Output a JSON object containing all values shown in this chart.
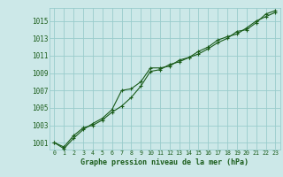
{
  "title": "Graphe pression niveau de la mer (hPa)",
  "bg_color": "#cce8e8",
  "grid_color": "#99cccc",
  "line_color": "#1a5c1a",
  "xlim": [
    -0.5,
    23.5
  ],
  "ylim": [
    1000.2,
    1016.5
  ],
  "yticks": [
    1001,
    1003,
    1005,
    1007,
    1009,
    1011,
    1013,
    1015
  ],
  "xticks": [
    0,
    1,
    2,
    3,
    4,
    5,
    6,
    7,
    8,
    9,
    10,
    11,
    12,
    13,
    14,
    15,
    16,
    17,
    18,
    19,
    20,
    21,
    22,
    23
  ],
  "hours": [
    0,
    1,
    2,
    3,
    4,
    5,
    6,
    7,
    8,
    9,
    10,
    11,
    12,
    13,
    14,
    15,
    16,
    17,
    18,
    19,
    20,
    21,
    22,
    23
  ],
  "series1": [
    1001.0,
    1000.5,
    1001.8,
    1002.7,
    1003.0,
    1003.6,
    1004.5,
    1005.2,
    1006.2,
    1007.5,
    1009.2,
    1009.4,
    1010.0,
    1010.3,
    1010.8,
    1011.5,
    1012.0,
    1012.8,
    1013.2,
    1013.5,
    1014.2,
    1015.0,
    1015.5,
    1016.0
  ],
  "series2": [
    1001.0,
    1000.3,
    1001.5,
    1002.5,
    1003.2,
    1003.8,
    1004.8,
    1007.0,
    1007.2,
    1008.0,
    1009.6,
    1009.6,
    1009.8,
    1010.5,
    1010.8,
    1011.2,
    1011.8,
    1012.5,
    1013.0,
    1013.8,
    1014.0,
    1014.8,
    1015.8,
    1016.2
  ],
  "ylabel_fontsize": 5.5,
  "xlabel_fontsize": 6.0,
  "tick_fontsize": 4.8
}
